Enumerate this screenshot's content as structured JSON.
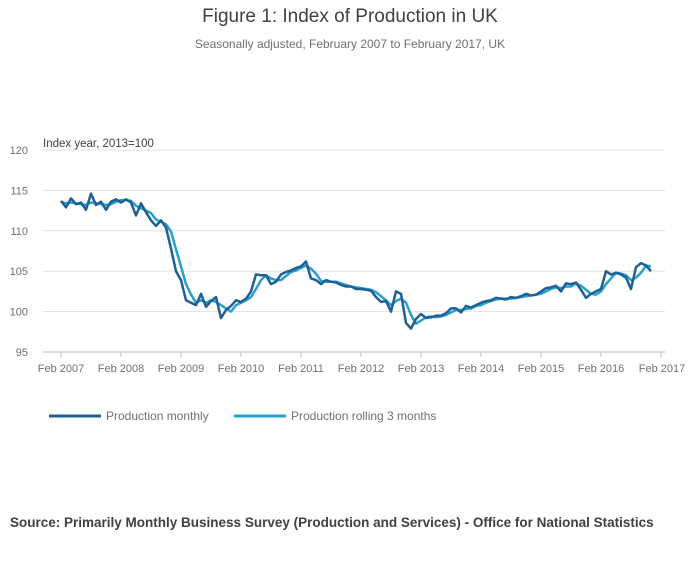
{
  "chart_data": {
    "type": "line",
    "title": "Figure 1: Index of Production in UK",
    "subtitle": "Seasonally adjusted, February 2007 to February 2017, UK",
    "ylabel": "Index year, 2013=100",
    "ylim": [
      95,
      120
    ],
    "yticks": [
      95,
      100,
      105,
      110,
      115,
      120
    ],
    "xticks": [
      "Feb 2007",
      "Feb 2008",
      "Feb 2009",
      "Feb 2010",
      "Feb 2011",
      "Feb 2012",
      "Feb 2013",
      "Feb 2014",
      "Feb 2015",
      "Feb 2016",
      "Feb 2017"
    ],
    "legend_position": "bottom-left",
    "series": [
      {
        "name": "Production monthly",
        "color": "#206095",
        "values": [
          113.7,
          112.9,
          114.0,
          113.3,
          113.5,
          112.6,
          114.6,
          113.2,
          113.6,
          112.6,
          113.6,
          113.9,
          113.5,
          113.9,
          113.5,
          111.9,
          113.4,
          112.3,
          111.3,
          110.6,
          111.3,
          110.4,
          107.8,
          105.0,
          103.9,
          101.4,
          101.1,
          100.8,
          102.2,
          100.6,
          101.3,
          101.8,
          99.2,
          100.2,
          100.7,
          101.4,
          101.2,
          101.6,
          102.5,
          104.6,
          104.5,
          104.5,
          103.4,
          103.7,
          104.6,
          104.9,
          105.1,
          105.4,
          105.6,
          106.2,
          104.1,
          103.9,
          103.4,
          103.9,
          103.7,
          103.6,
          103.3,
          103.1,
          103.1,
          102.8,
          102.8,
          102.7,
          102.6,
          101.8,
          101.2,
          101.3,
          100.0,
          102.5,
          102.2,
          98.6,
          97.9,
          99.1,
          99.7,
          99.2,
          99.3,
          99.5,
          99.5,
          99.8,
          100.4,
          100.4,
          99.9,
          100.7,
          100.5,
          100.8,
          101.1,
          101.3,
          101.4,
          101.7,
          101.6,
          101.5,
          101.8,
          101.7,
          101.9,
          102.2,
          102.0,
          102.1,
          102.5,
          102.9,
          103.0,
          103.2,
          102.5,
          103.5,
          103.4,
          103.6,
          102.7,
          101.7,
          102.2,
          102.5,
          102.8,
          105.0,
          104.6,
          104.8,
          104.6,
          104.2,
          102.8,
          105.5,
          106.0,
          105.7,
          105.0
        ]
      },
      {
        "name": "Production rolling 3 months",
        "color": "#27A0CC",
        "values": [
          113.6,
          113.4,
          113.5,
          113.4,
          113.3,
          113.2,
          113.5,
          113.4,
          113.3,
          113.2,
          113.3,
          113.6,
          113.8,
          113.8,
          113.7,
          113.1,
          112.8,
          112.5,
          112.2,
          111.4,
          111.1,
          110.8,
          109.9,
          107.7,
          105.6,
          103.4,
          102.1,
          101.1,
          101.4,
          101.1,
          101.4,
          101.2,
          100.8,
          100.4,
          100.0,
          100.8,
          101.1,
          101.4,
          101.8,
          102.8,
          103.9,
          104.5,
          104.1,
          103.9,
          103.9,
          104.4,
          104.9,
          105.1,
          105.4,
          105.7,
          105.3,
          104.7,
          103.8,
          103.7,
          103.7,
          103.7,
          103.5,
          103.3,
          103.1,
          103.0,
          102.9,
          102.8,
          102.7,
          102.4,
          101.9,
          101.4,
          100.8,
          101.3,
          101.6,
          101.1,
          99.6,
          98.5,
          98.9,
          99.3,
          99.4,
          99.3,
          99.4,
          99.6,
          99.9,
          100.2,
          100.2,
          100.3,
          100.4,
          100.7,
          100.8,
          101.1,
          101.3,
          101.5,
          101.6,
          101.6,
          101.6,
          101.7,
          101.8,
          101.9,
          102.0,
          102.1,
          102.2,
          102.5,
          102.8,
          103.0,
          102.9,
          103.1,
          103.1,
          103.5,
          103.2,
          102.7,
          102.2,
          102.1,
          102.5,
          103.4,
          104.1,
          104.8,
          104.7,
          104.5,
          103.9,
          104.2,
          104.8,
          105.7,
          105.6
        ]
      }
    ],
    "source": "Source: Primarily Monthly Business Survey (Production and Services) - Office for National Statistics"
  }
}
